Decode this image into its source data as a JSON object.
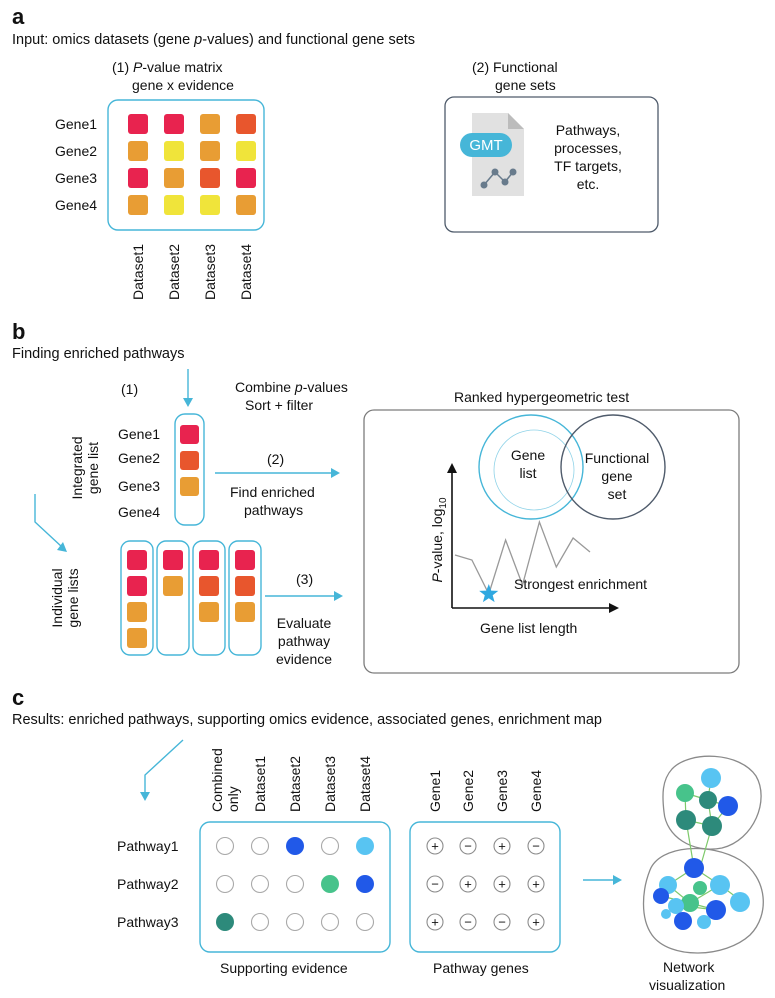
{
  "colors": {
    "red": "#e8234f",
    "orange_red": "#e8562d",
    "orange": "#e89d34",
    "yellow": "#f0e43a",
    "blue": "#2159e8",
    "light_blue": "#58c4f2",
    "green": "#47c38b",
    "teal": "#2d8a7b",
    "box": "#46b6d8",
    "grey": "#7c7c7c"
  },
  "panel_a": {
    "letter": "a",
    "subtitle": "Input: omics datasets (gene p-values) and functional gene sets",
    "matrix": {
      "title_line1": "(1) P-value matrix",
      "title_line2": "gene x evidence",
      "rows": [
        "Gene1",
        "Gene2",
        "Gene3",
        "Gene4"
      ],
      "cols": [
        "Dataset1",
        "Dataset2",
        "Dataset3",
        "Dataset4"
      ],
      "cells": [
        [
          "red",
          "red",
          "orange",
          "orange_red"
        ],
        [
          "orange",
          "yellow",
          "orange",
          "yellow"
        ],
        [
          "red",
          "orange",
          "orange_red",
          "red"
        ],
        [
          "orange",
          "yellow",
          "yellow",
          "orange"
        ]
      ]
    },
    "genesets": {
      "title_line1": "(2) Functional",
      "title_line2": "gene sets",
      "file_badge": "GMT",
      "desc": [
        "Pathways,",
        "processes,",
        "TF targets,",
        "etc."
      ]
    }
  },
  "panel_b": {
    "letter": "b",
    "subtitle": "Finding enriched pathways",
    "step1_label": "(1)",
    "step1_text_line1": "Combine p-values",
    "step1_text_line2": "Sort + filter",
    "integrated_label_line1": "Integrated",
    "integrated_label_line2": "gene list",
    "integrated_genes": [
      "Gene1",
      "Gene2",
      "Gene3",
      "Gene4"
    ],
    "integrated_cells": [
      "red",
      "orange_red",
      "orange"
    ],
    "step2_label": "(2)",
    "step2_text_line1": "Find enriched",
    "step2_text_line2": "pathways",
    "individual_label_line1": "Individual",
    "individual_label_line2": "gene lists",
    "individual_lists": [
      [
        "red",
        "red",
        "orange",
        "orange"
      ],
      [
        "red",
        "orange"
      ],
      [
        "red",
        "orange_red",
        "orange"
      ],
      [
        "red",
        "orange_red",
        "orange"
      ]
    ],
    "step3_label": "(3)",
    "step3_text": [
      "Evaluate",
      "pathway",
      "evidence"
    ],
    "test": {
      "title": "Ranked hypergeometric test",
      "venn_left": [
        "Gene",
        "list"
      ],
      "venn_right": [
        "Functional",
        "gene",
        "set"
      ],
      "y_axis_label": "P-value, log10",
      "y_axis_prefix": "P",
      "y_axis_mid": "-value, log",
      "y_axis_sub": "10",
      "x_axis_label": "Gene list length",
      "star_label": "Strongest enrichment",
      "line_y": [
        0.45,
        0.4,
        0.06,
        0.6,
        0.15,
        0.78,
        0.33,
        0.62,
        0.48
      ]
    }
  },
  "panel_c": {
    "letter": "c",
    "subtitle": "Results: enriched pathways, supporting omics evidence, associated genes, enrichment map",
    "pathways": [
      "Pathway1",
      "Pathway2",
      "Pathway3"
    ],
    "evidence_cols": [
      "Combined\nonly",
      "Dataset1",
      "Dataset2",
      "Dataset3",
      "Dataset4"
    ],
    "evidence_col_line1": "Combined",
    "evidence_col_line2": "only",
    "evidence_cols_datasets": [
      "Dataset1",
      "Dataset2",
      "Dataset3",
      "Dataset4"
    ],
    "evidence_cells": [
      [
        "empty",
        "empty",
        "blue",
        "empty",
        "light_blue"
      ],
      [
        "empty",
        "empty",
        "empty",
        "green",
        "blue"
      ],
      [
        "teal",
        "empty",
        "empty",
        "empty",
        "empty"
      ]
    ],
    "evidence_caption": "Supporting evidence",
    "gene_cols": [
      "Gene1",
      "Gene2",
      "Gene3",
      "Gene4"
    ],
    "gene_signs": [
      [
        "+",
        "−",
        "+",
        "−"
      ],
      [
        "−",
        "+",
        "+",
        "+"
      ],
      [
        "+",
        "−",
        "−",
        "+"
      ]
    ],
    "genes_caption": "Pathway genes",
    "network_caption_line1": "Network",
    "network_caption_line2": "visualization"
  }
}
